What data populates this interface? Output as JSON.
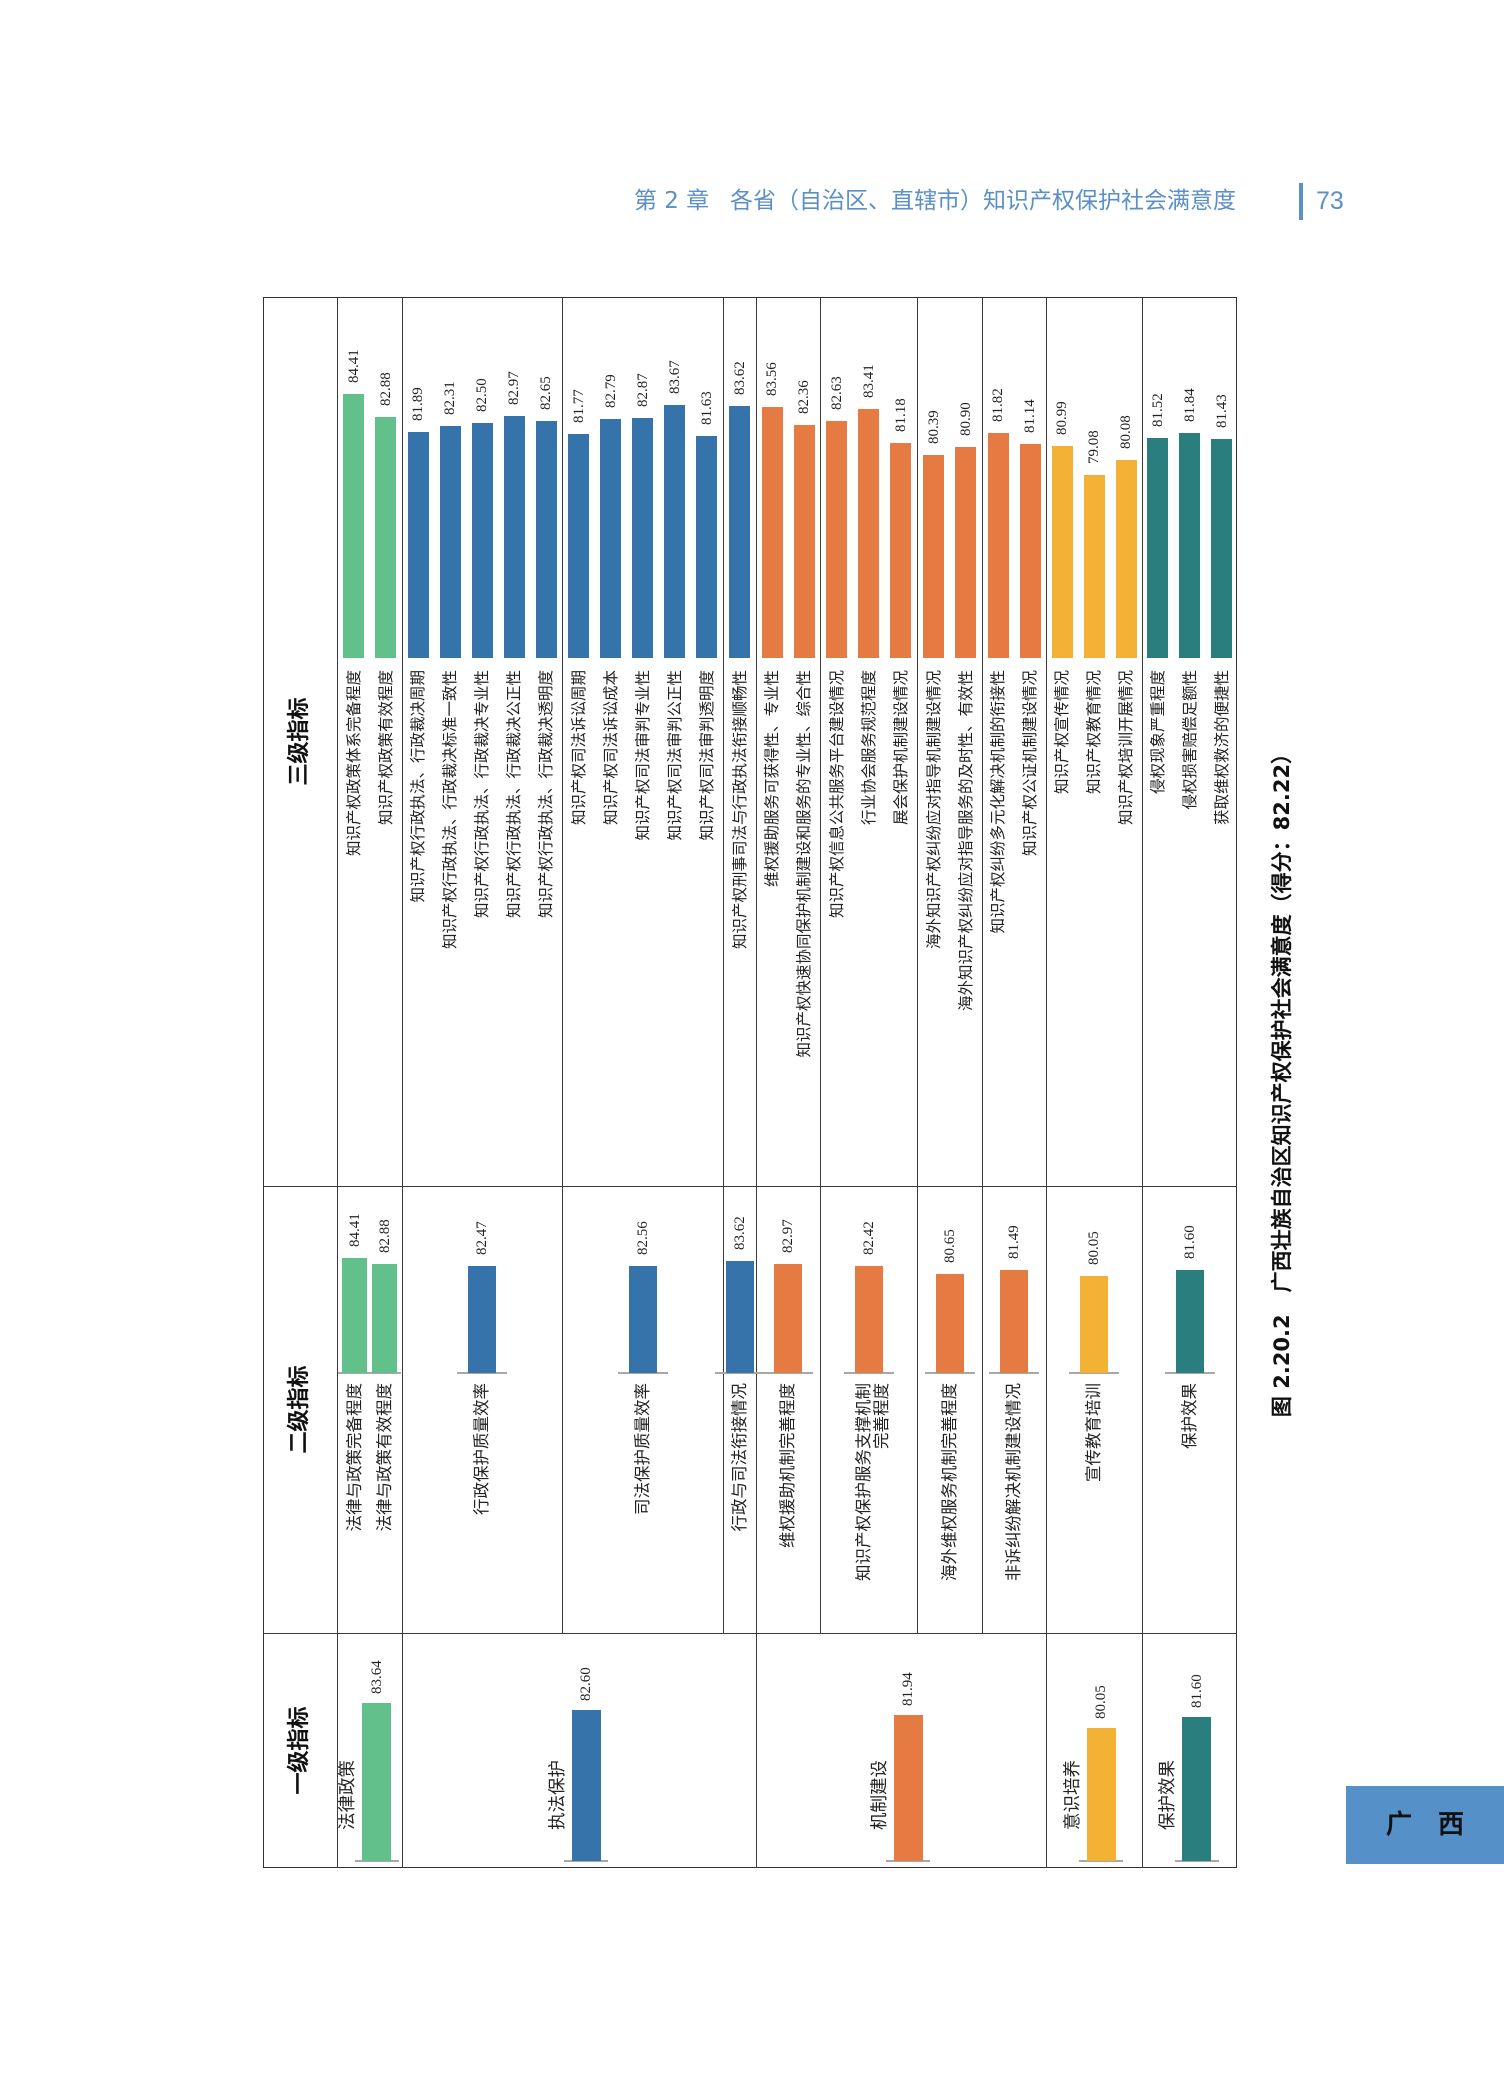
{
  "page_header": {
    "chapter": "第 2 章",
    "title": "各省（自治区、直辖市）知识产权保护社会满意度",
    "page_number": "73"
  },
  "side_tab": {
    "label": "广　西"
  },
  "chart_data": {
    "type": "bar",
    "figure_number": "图 2.20.2",
    "title": "广西壮族自治区知识产权保护社会满意度（得分：82.22）",
    "primary": {
      "header": "一级指标",
      "items": [
        {
          "label": "法律政策",
          "value": "83.64",
          "color": "#62c08b"
        },
        {
          "label": "执法保护",
          "value": "82.60",
          "color": "#3573aa"
        },
        {
          "label": "机制建设",
          "value": "81.94",
          "color": "#e57a42"
        },
        {
          "label": "意识培养",
          "value": "80.05",
          "color": "#f3b236"
        },
        {
          "label": "保护效果",
          "value": "81.60",
          "color": "#2a7f7e"
        }
      ]
    },
    "secondary": {
      "header": "二级指标",
      "columns": [
        {
          "primary": 0,
          "items": [
            {
              "label": "法律与政策完备程度",
              "value": "84.41"
            },
            {
              "label": "法律与政策有效程度",
              "value": "82.88"
            }
          ]
        },
        {
          "primary": 1,
          "items": [
            {
              "label": "行政保护质量效率",
              "value": "82.47"
            }
          ]
        },
        {
          "primary": 1,
          "items": [
            {
              "label": "司法保护质量效率",
              "value": "82.56"
            }
          ]
        },
        {
          "primary": 1,
          "items": [
            {
              "label": "行政与司法衔接情况",
              "value": "83.62"
            }
          ]
        },
        {
          "primary": 2,
          "items": [
            {
              "label": "维权援助机制完善程度",
              "value": "82.97"
            }
          ]
        },
        {
          "primary": 2,
          "items": [
            {
              "label": "知识产权保护服务支撑机制\n完善程度",
              "value": "82.42"
            }
          ]
        },
        {
          "primary": 2,
          "items": [
            {
              "label": "海外维权服务机制完善程度",
              "value": "80.65"
            }
          ]
        },
        {
          "primary": 2,
          "items": [
            {
              "label": "非诉纠纷解决机制建设情况",
              "value": "81.49"
            }
          ]
        },
        {
          "primary": 3,
          "items": [
            {
              "label": "宣传教育培训",
              "value": "80.05"
            }
          ]
        },
        {
          "primary": 4,
          "items": [
            {
              "label": "保护效果",
              "value": "81.60"
            }
          ]
        }
      ]
    },
    "tertiary": {
      "header": "三级指标",
      "columns": [
        {
          "items": [
            {
              "label": "知识产权政策体系完备程度",
              "value": "84.41"
            },
            {
              "label": "知识产权政策有效程度",
              "value": "82.88"
            }
          ]
        },
        {
          "items": [
            {
              "label": "知识产权行政执法、行政裁决周期",
              "value": "81.89"
            },
            {
              "label": "知识产权行政执法、行政裁决标准一致性",
              "value": "82.31"
            },
            {
              "label": "知识产权行政执法、行政裁决专业性",
              "value": "82.50"
            },
            {
              "label": "知识产权行政执法、行政裁决公正性",
              "value": "82.97"
            },
            {
              "label": "知识产权行政执法、行政裁决透明度",
              "value": "82.65"
            }
          ]
        },
        {
          "items": [
            {
              "label": "知识产权司法诉讼周期",
              "value": "81.77"
            },
            {
              "label": "知识产权司法诉讼成本",
              "value": "82.79"
            },
            {
              "label": "知识产权司法审判专业性",
              "value": "82.87"
            },
            {
              "label": "知识产权司法审判公正性",
              "value": "83.67"
            },
            {
              "label": "知识产权司法审判透明度",
              "value": "81.63"
            }
          ]
        },
        {
          "items": [
            {
              "label": "知识产权刑事司法与行政执法衔接顺畅性",
              "value": "83.62"
            }
          ]
        },
        {
          "items": [
            {
              "label": "维权援助服务可获得性、专业性",
              "value": "83.56"
            },
            {
              "label": "知识产权快速协同保护机制建设和服务的专业性、综合性",
              "value": "82.36"
            }
          ]
        },
        {
          "items": [
            {
              "label": "知识产权信息公共服务平台建设情况",
              "value": "82.63"
            },
            {
              "label": "行业协会服务规范程度",
              "value": "83.41"
            },
            {
              "label": "展会保护机制建设情况",
              "value": "81.18"
            }
          ]
        },
        {
          "items": [
            {
              "label": "海外知识产权纠纷应对指导机制建设情况",
              "value": "80.39"
            },
            {
              "label": "海外知识产权纠纷应对指导服务的及时性、有效性",
              "value": "80.90"
            }
          ]
        },
        {
          "items": [
            {
              "label": "知识产权纠纷多元化解决机制的衔接性",
              "value": "81.82"
            },
            {
              "label": "知识产权公证机制建设情况",
              "value": "81.14"
            }
          ]
        },
        {
          "items": [
            {
              "label": "知识产权宣传情况",
              "value": "80.99"
            },
            {
              "label": "知识产权教育情况",
              "value": "79.08"
            },
            {
              "label": "知识产权培训开展情况",
              "value": "80.08"
            }
          ]
        },
        {
          "items": [
            {
              "label": "侵权现象严重程度",
              "value": "81.52"
            },
            {
              "label": "侵权损害赔偿足额性",
              "value": "81.84"
            },
            {
              "label": "获取维权救济的便捷性",
              "value": "81.43"
            }
          ]
        }
      ]
    }
  }
}
